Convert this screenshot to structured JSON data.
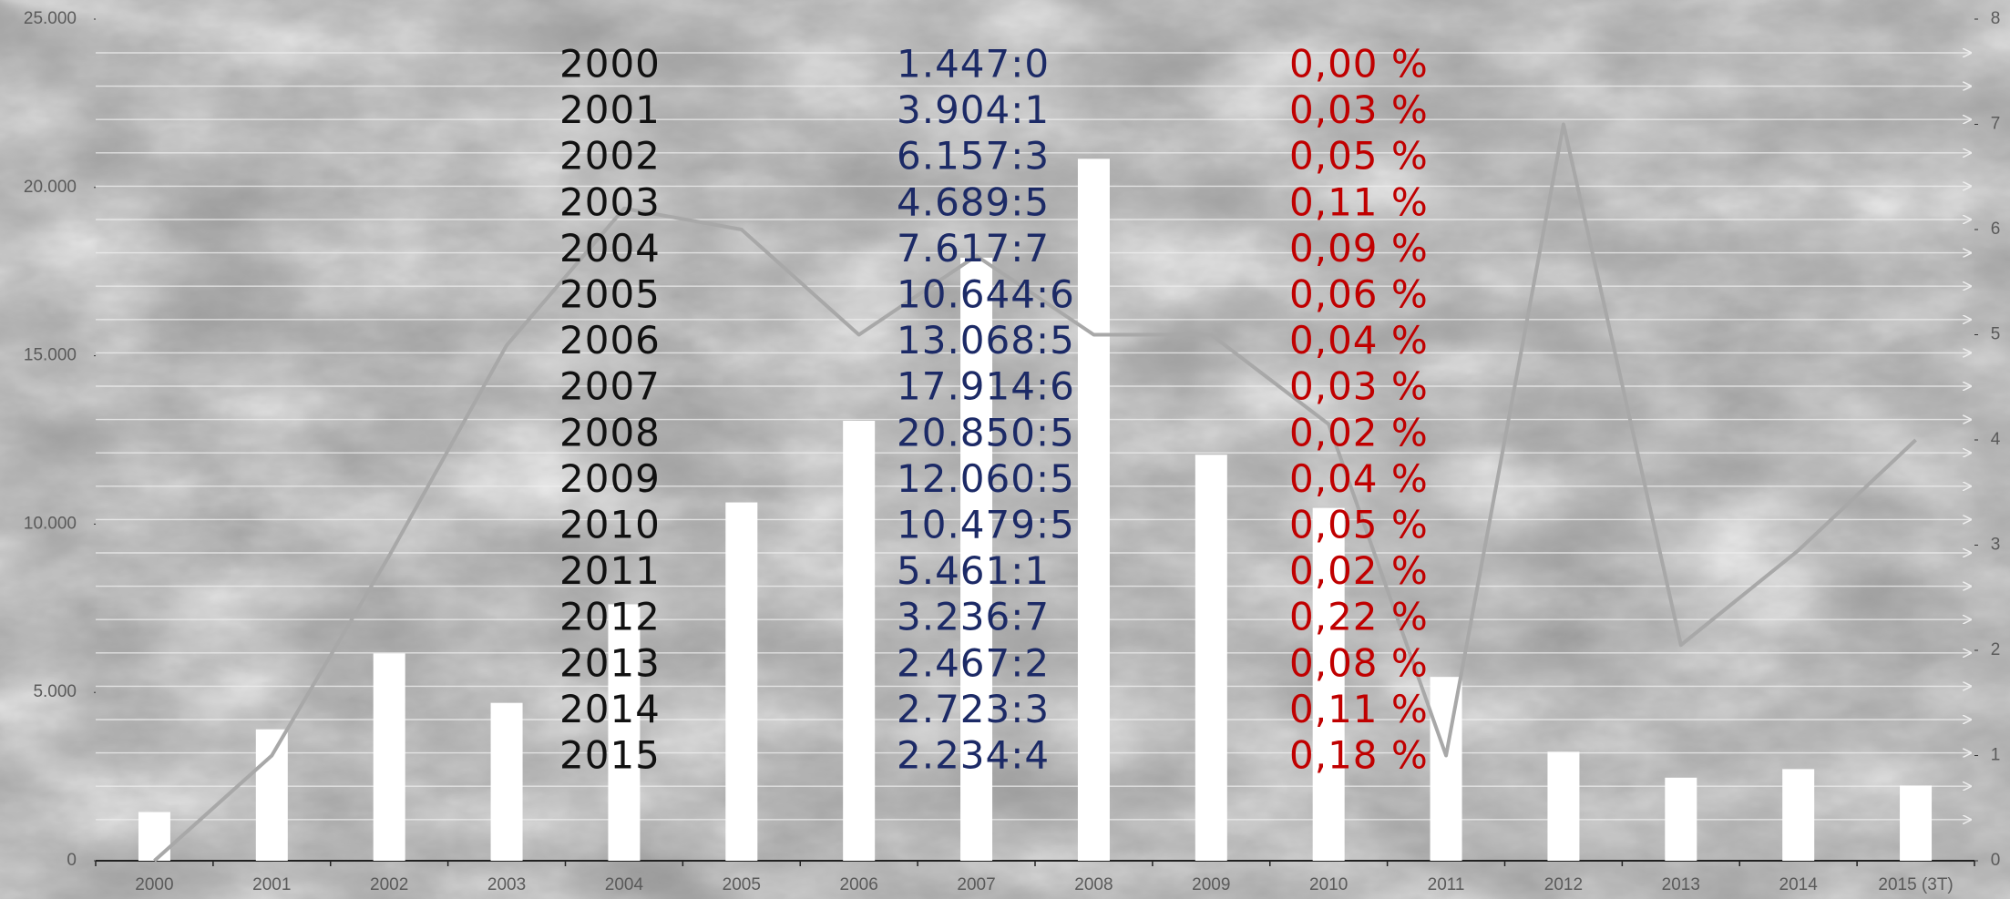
{
  "chart_data": {
    "type": "bar-line",
    "categories": [
      "2000",
      "2001",
      "2002",
      "2003",
      "2004",
      "2005",
      "2006",
      "2007",
      "2008",
      "2009",
      "2010",
      "2011",
      "2012",
      "2013",
      "2014",
      "2015 (3T)"
    ],
    "series": [
      {
        "type": "bar",
        "color": "#ffffff",
        "values": [
          1447.0,
          3904.1,
          6157.3,
          4689.5,
          7617.7,
          10644.6,
          13068.5,
          17914.6,
          20850.5,
          12060.5,
          10479.5,
          5461.1,
          3236.7,
          2467.2,
          2723.3,
          2234.4
        ],
        "value_labels": [
          "1.447:0",
          "3.904:1",
          "6.157:3",
          "4.689:5",
          "7.617:7",
          "10.644:6",
          "13.068:5",
          "17.914:6",
          "20.850:5",
          "12.060:5",
          "10.479:5",
          "5.461:1",
          "3.236:7",
          "2.467:2",
          "2.723:3",
          "2.234:4"
        ],
        "value_label_color": "#1c2a66"
      },
      {
        "type": "line",
        "axis": "y2",
        "color": "#a8a8a8",
        "values": [
          0,
          1.0,
          2.9,
          4.9,
          6.2,
          6.0,
          5.0,
          5.75,
          5.0,
          5.0,
          4.15,
          1.0,
          7.0,
          2.05,
          2.95,
          4.0
        ]
      }
    ],
    "ylim": [
      0,
      25000
    ],
    "yticks": [
      0,
      {
        "value": 5000,
        "label": "5.000"
      },
      {
        "value": 10000,
        "label": "10.000"
      },
      {
        "value": 15000,
        "label": "15.000"
      },
      {
        "value": 20000,
        "label": "20.000"
      },
      {
        "value": 25000,
        "label": "25.000"
      }
    ],
    "y2lim": [
      0,
      8
    ],
    "y2ticks": [
      0,
      1,
      2,
      3,
      4,
      5,
      6,
      7,
      8
    ]
  },
  "table_overlay": {
    "years": [
      "2000",
      "2001",
      "2002",
      "2003",
      "2004",
      "2005",
      "2006",
      "2007",
      "2008",
      "2009",
      "2010",
      "2011",
      "2012",
      "2013",
      "2014",
      "2015"
    ],
    "year_color": "#111111",
    "percentages": [
      "0,00 %",
      "0,03 %",
      "0,05 %",
      "0,11 %",
      "0,09 %",
      "0,06 %",
      "0,04 %",
      "0,03 %",
      "0,02 %",
      "0,04 %",
      "0,05 %",
      "0,02 %",
      "0,22 %",
      "0,08 %",
      "0,11 %",
      "0,18 %"
    ],
    "percentage_color": "#c00000"
  }
}
